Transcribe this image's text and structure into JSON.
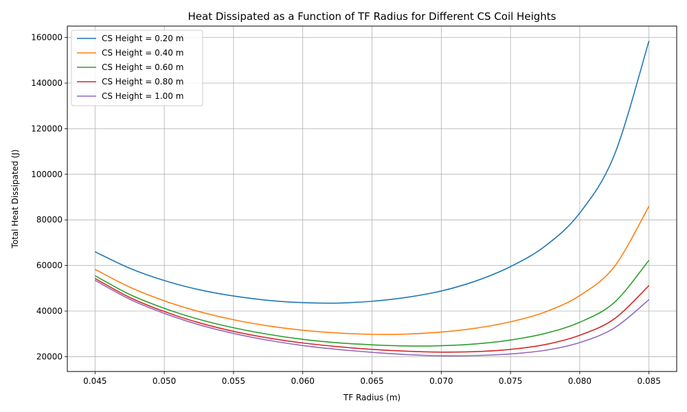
{
  "chart_data": {
    "type": "line",
    "title": "Heat Dissipated as a Function of TF Radius for Different CS Coil Heights",
    "xlabel": "TF Radius (m)",
    "ylabel": "Total Heat Dissipated (J)",
    "xlim": [
      0.043,
      0.087
    ],
    "ylim": [
      13500,
      165000
    ],
    "xticks": [
      "0.045",
      "0.050",
      "0.055",
      "0.060",
      "0.065",
      "0.070",
      "0.075",
      "0.080",
      "0.085"
    ],
    "yticks": [
      "20000",
      "40000",
      "60000",
      "80000",
      "100000",
      "120000",
      "140000",
      "160000"
    ],
    "grid": true,
    "legend_position": "upper-left",
    "x": [
      0.045,
      0.0475,
      0.05,
      0.0525,
      0.055,
      0.0575,
      0.06,
      0.0625,
      0.065,
      0.0675,
      0.07,
      0.0725,
      0.075,
      0.0775,
      0.08,
      0.0825,
      0.085
    ],
    "series": [
      {
        "name": "CS Height = 0.20 m",
        "color": "#1f77b4",
        "values": [
          66000,
          58800,
          53400,
          49400,
          46600,
          44700,
          43700,
          43500,
          44300,
          46000,
          48800,
          53200,
          59500,
          68500,
          83000,
          108500,
          158500
        ]
      },
      {
        "name": "CS Height = 0.40 m",
        "color": "#ff7f0e",
        "values": [
          58300,
          50500,
          44500,
          39800,
          36200,
          33500,
          31600,
          30400,
          29800,
          29900,
          30800,
          32500,
          35300,
          39600,
          46800,
          59500,
          86000
        ]
      },
      {
        "name": "CS Height = 0.60 m",
        "color": "#2ca02c",
        "values": [
          55500,
          47300,
          41200,
          36400,
          32700,
          29800,
          27600,
          26100,
          25200,
          24700,
          24800,
          25600,
          27300,
          30200,
          35100,
          43800,
          62300
        ]
      },
      {
        "name": "CS Height = 0.80 m",
        "color": "#d62728",
        "values": [
          54300,
          46000,
          39800,
          34900,
          31100,
          28200,
          26000,
          24400,
          23200,
          22400,
          22000,
          22200,
          23200,
          25300,
          29400,
          36600,
          51200
        ]
      },
      {
        "name": "CS Height = 1.00 m",
        "color": "#9467bd",
        "values": [
          53500,
          45200,
          39000,
          34000,
          30200,
          27200,
          24900,
          23200,
          21900,
          20900,
          20400,
          20500,
          21200,
          22800,
          26200,
          32600,
          45000
        ]
      }
    ]
  }
}
